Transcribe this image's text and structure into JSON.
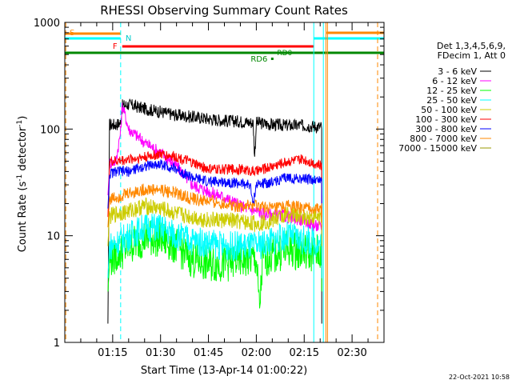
{
  "chart_data": {
    "type": "line",
    "title": "RHESSI Observing Summary Count Rates",
    "xlabel": "Start Time (13-Apr-14 01:00:22)",
    "ylabel_main": "Count Rate (s",
    "ylabel_sup1": "-1",
    "ylabel_mid": " detector",
    "ylabel_sup2": "-1",
    "ylabel_end": ")",
    "y_scale": "log",
    "ylim": [
      1,
      1000
    ],
    "xlim_minutes": [
      0,
      100
    ],
    "x_ticks": [
      {
        "label": "01:15",
        "minute": 15
      },
      {
        "label": "01:30",
        "minute": 30
      },
      {
        "label": "01:45",
        "minute": 45
      },
      {
        "label": "02:00",
        "minute": 60
      },
      {
        "label": "02:15",
        "minute": 75
      },
      {
        "label": "02:30",
        "minute": 90
      }
    ],
    "y_ticks": [
      {
        "label": "1",
        "value": 1
      },
      {
        "label": "10",
        "value": 10
      },
      {
        "label": "100",
        "value": 100
      },
      {
        "label": "1000",
        "value": 1000
      }
    ],
    "legend_header": [
      "Det 1,3,4,5,6,9,",
      "FDecim 1, Att 0"
    ],
    "legend_position": "right",
    "footer_date": "22-Oct-2021 10:58",
    "flags": {
      "S": {
        "label": "S",
        "color": "#ff8800",
        "start": 0,
        "end": 17.5
      },
      "N": {
        "label": "N",
        "color": "#00ffff",
        "segments": [
          [
            0,
            17.5
          ],
          [
            78,
            100
          ]
        ]
      },
      "F": {
        "label": "F",
        "color": "#ff0000",
        "start": 18,
        "end": 78
      },
      "attn": {
        "color": "#ff8800",
        "start": 82,
        "end": 100
      },
      "green": {
        "color": "#008800",
        "start": 0,
        "end": 100
      },
      "RD6": {
        "label": "RD6",
        "color": "#008800",
        "minute": 65
      },
      "RD0": {
        "label": "RD0",
        "color": "#008800",
        "minute": 66
      }
    },
    "vlines": [
      {
        "minute": 0.3,
        "color": "#ff8800",
        "style": "dashed"
      },
      {
        "minute": 17.5,
        "color": "#00ffff",
        "style": "dashed"
      },
      {
        "minute": 78,
        "color": "#00ffff",
        "style": "solid"
      },
      {
        "minute": 81,
        "color": "#00ffff",
        "style": "solid"
      },
      {
        "minute": 81.8,
        "color": "#ff8800",
        "style": "solid"
      },
      {
        "minute": 82.3,
        "color": "#ff8800",
        "style": "solid"
      },
      {
        "minute": 98,
        "color": "#ff8800",
        "style": "dashed"
      }
    ],
    "data_range_minutes": [
      13.5,
      80.5
    ],
    "series": [
      {
        "name": "3 - 6 keV",
        "color": "#000000",
        "points": [
          [
            13.5,
            1.5
          ],
          [
            14,
            110
          ],
          [
            16,
            110
          ],
          [
            17.5,
            115
          ],
          [
            18,
            165
          ],
          [
            20,
            170
          ],
          [
            25,
            155
          ],
          [
            30,
            145
          ],
          [
            35,
            135
          ],
          [
            40,
            130
          ],
          [
            45,
            125
          ],
          [
            50,
            120
          ],
          [
            55,
            118
          ],
          [
            59,
            115
          ],
          [
            59.5,
            55
          ],
          [
            60,
            115
          ],
          [
            65,
            110
          ],
          [
            70,
            108
          ],
          [
            75,
            108
          ],
          [
            80.5,
            105
          ]
        ]
      },
      {
        "name": "6 - 12 keV",
        "color": "#ff00ff",
        "points": [
          [
            13.5,
            24
          ],
          [
            14,
            48
          ],
          [
            16,
            50
          ],
          [
            17.5,
            95
          ],
          [
            18,
            170
          ],
          [
            20,
            100
          ],
          [
            25,
            75
          ],
          [
            30,
            60
          ],
          [
            35,
            45
          ],
          [
            40,
            30
          ],
          [
            45,
            26
          ],
          [
            48,
            24
          ],
          [
            50,
            23
          ],
          [
            55,
            19
          ],
          [
            60,
            17
          ],
          [
            63,
            16
          ],
          [
            67,
            15.5
          ],
          [
            70,
            15
          ],
          [
            75,
            14
          ],
          [
            78,
            12.5
          ],
          [
            80.5,
            12
          ]
        ]
      },
      {
        "name": "12 - 25 keV",
        "color": "#00ff00",
        "points": [
          [
            13.5,
            3
          ],
          [
            14,
            6
          ],
          [
            16,
            6.5
          ],
          [
            20,
            8
          ],
          [
            25,
            9.5
          ],
          [
            30,
            9.5
          ],
          [
            35,
            8
          ],
          [
            40,
            6
          ],
          [
            45,
            5.5
          ],
          [
            50,
            5.5
          ],
          [
            55,
            6
          ],
          [
            60,
            6
          ],
          [
            61,
            2
          ],
          [
            62,
            6
          ],
          [
            65,
            6.5
          ],
          [
            70,
            7.5
          ],
          [
            75,
            7
          ],
          [
            80.5,
            7
          ]
        ]
      },
      {
        "name": "25 - 50 keV",
        "color": "#00ffff",
        "points": [
          [
            13.5,
            4
          ],
          [
            14,
            8
          ],
          [
            16,
            8.5
          ],
          [
            20,
            10
          ],
          [
            25,
            12
          ],
          [
            30,
            12
          ],
          [
            35,
            10
          ],
          [
            40,
            9
          ],
          [
            45,
            8.5
          ],
          [
            50,
            8
          ],
          [
            55,
            8
          ],
          [
            60,
            8
          ],
          [
            65,
            9
          ],
          [
            70,
            10
          ],
          [
            75,
            9
          ],
          [
            80.5,
            8.5
          ]
        ]
      },
      {
        "name": "50 - 100 keV",
        "color": "#cccc00",
        "points": [
          [
            13.5,
            8
          ],
          [
            14,
            15
          ],
          [
            16,
            16
          ],
          [
            20,
            17
          ],
          [
            25,
            19
          ],
          [
            30,
            18
          ],
          [
            35,
            16
          ],
          [
            40,
            15
          ],
          [
            45,
            14
          ],
          [
            50,
            14
          ],
          [
            55,
            13.5
          ],
          [
            60,
            13
          ],
          [
            65,
            14
          ],
          [
            70,
            16
          ],
          [
            75,
            15
          ],
          [
            80.5,
            15
          ]
        ]
      },
      {
        "name": "100 - 300 keV",
        "color": "#ff0000",
        "points": [
          [
            13.5,
            15
          ],
          [
            14,
            50
          ],
          [
            16,
            50
          ],
          [
            20,
            52
          ],
          [
            25,
            55
          ],
          [
            30,
            58
          ],
          [
            35,
            55
          ],
          [
            40,
            48
          ],
          [
            45,
            42
          ],
          [
            50,
            42
          ],
          [
            55,
            42
          ],
          [
            60,
            40
          ],
          [
            65,
            45
          ],
          [
            70,
            50
          ],
          [
            75,
            52
          ],
          [
            80.5,
            45
          ]
        ]
      },
      {
        "name": "300 - 800 keV",
        "color": "#0000ff",
        "points": [
          [
            13.5,
            18
          ],
          [
            14,
            38
          ],
          [
            16,
            40
          ],
          [
            20,
            40
          ],
          [
            25,
            45
          ],
          [
            30,
            47
          ],
          [
            35,
            42
          ],
          [
            40,
            35
          ],
          [
            45,
            32
          ],
          [
            50,
            32
          ],
          [
            55,
            31
          ],
          [
            58,
            30
          ],
          [
            59,
            20
          ],
          [
            60,
            30
          ],
          [
            65,
            32
          ],
          [
            70,
            35
          ],
          [
            75,
            34
          ],
          [
            80.5,
            33
          ]
        ]
      },
      {
        "name": "800 - 7000 keV",
        "color": "#ff8800",
        "points": [
          [
            13.5,
            12
          ],
          [
            14,
            22
          ],
          [
            16,
            23
          ],
          [
            20,
            25
          ],
          [
            25,
            27
          ],
          [
            30,
            27
          ],
          [
            35,
            25
          ],
          [
            40,
            22
          ],
          [
            45,
            21
          ],
          [
            50,
            20
          ],
          [
            55,
            19
          ],
          [
            60,
            19
          ],
          [
            65,
            18
          ],
          [
            70,
            19
          ],
          [
            75,
            18
          ],
          [
            80.5,
            18
          ]
        ]
      },
      {
        "name": "7000 - 15000 keV",
        "color": "#999900",
        "points": []
      }
    ]
  }
}
